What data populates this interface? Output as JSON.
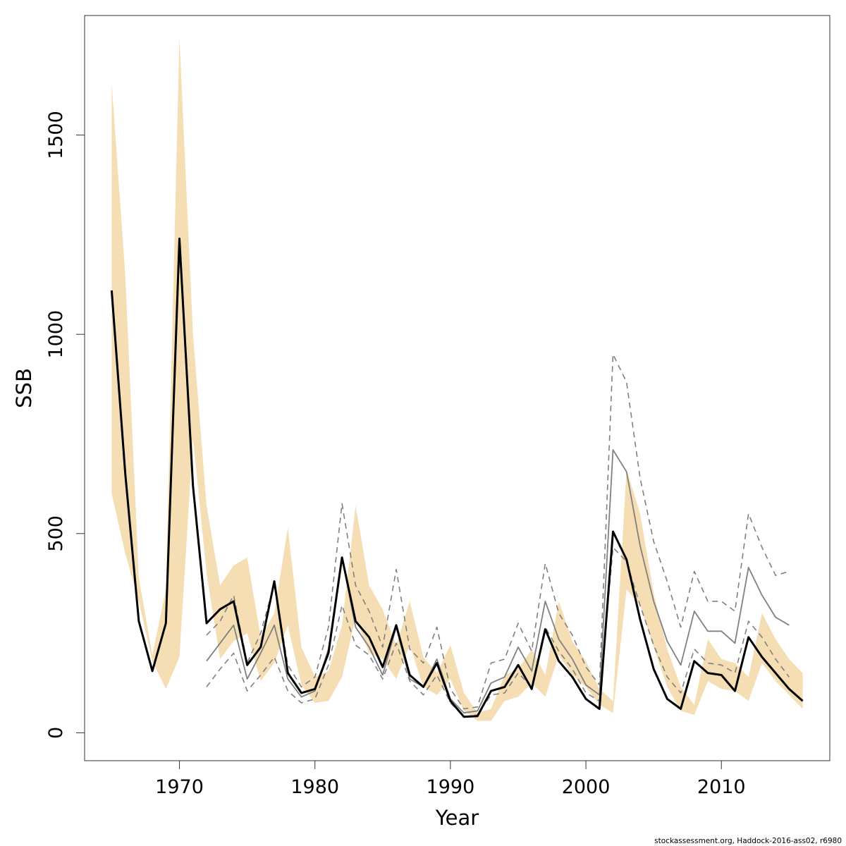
{
  "chart_data": {
    "type": "line",
    "xlabel": "Year",
    "ylabel": "SSB",
    "xlim": [
      1963,
      2018
    ],
    "ylim": [
      -70,
      1800
    ],
    "x_ticks": [
      1970,
      1980,
      1990,
      2000,
      2010
    ],
    "y_ticks": [
      0,
      500,
      1000,
      1500
    ],
    "grid": false,
    "legend": "none",
    "caption": "stockassessment.org, Haddock-2016-ass02, r6980",
    "colors": {
      "band": "#f5deb3",
      "estimate": "#000000",
      "retro": "#808080"
    },
    "band": {
      "x": [
        1965,
        1966,
        1967,
        1968,
        1969,
        1970,
        1971,
        1972,
        1973,
        1974,
        1975,
        1976,
        1977,
        1978,
        1979,
        1980,
        1981,
        1982,
        1983,
        1984,
        1985,
        1986,
        1987,
        1988,
        1989,
        1990,
        1991,
        1992,
        1993,
        1994,
        1995,
        1996,
        1997,
        1998,
        1999,
        2000,
        2001,
        2002,
        2003,
        2004,
        2005,
        2006,
        2007,
        2008,
        2009,
        2010,
        2011,
        2012,
        2013,
        2014,
        2015,
        2016
      ],
      "lower": [
        600,
        450,
        330,
        180,
        110,
        190,
        740,
        400,
        185,
        230,
        250,
        130,
        175,
        270,
        120,
        75,
        80,
        140,
        290,
        200,
        185,
        135,
        220,
        115,
        95,
        135,
        55,
        30,
        30,
        80,
        90,
        125,
        90,
        195,
        145,
        115,
        70,
        50,
        360,
        320,
        215,
        115,
        55,
        45,
        130,
        110,
        105,
        80,
        175,
        130,
        95,
        60
      ],
      "upper": [
        1630,
        1150,
        390,
        195,
        360,
        1745,
        1000,
        570,
        370,
        420,
        440,
        240,
        300,
        515,
        215,
        140,
        155,
        270,
        570,
        370,
        310,
        220,
        330,
        190,
        150,
        220,
        100,
        50,
        60,
        145,
        160,
        210,
        145,
        330,
        230,
        180,
        110,
        80,
        660,
        550,
        350,
        210,
        115,
        70,
        235,
        185,
        175,
        140,
        300,
        235,
        185,
        150
      ]
    },
    "series": [
      {
        "name": "estimate",
        "x": [
          1965,
          1966,
          1967,
          1968,
          1969,
          1970,
          1971,
          1972,
          1973,
          1974,
          1975,
          1976,
          1977,
          1978,
          1979,
          1980,
          1981,
          1982,
          1983,
          1984,
          1985,
          1986,
          1987,
          1988,
          1989,
          1990,
          1991,
          1992,
          1993,
          1994,
          1995,
          1996,
          1997,
          1998,
          1999,
          2000,
          2001,
          2002,
          2003,
          2004,
          2005,
          2006,
          2007,
          2008,
          2009,
          2010,
          2011,
          2012,
          2013,
          2014,
          2015,
          2016
        ],
        "values": [
          1110,
          650,
          280,
          155,
          275,
          1240,
          620,
          275,
          310,
          330,
          170,
          215,
          380,
          150,
          100,
          110,
          200,
          440,
          280,
          240,
          165,
          270,
          145,
          115,
          175,
          80,
          40,
          42,
          105,
          115,
          170,
          110,
          260,
          180,
          140,
          85,
          60,
          505,
          435,
          285,
          160,
          85,
          60,
          180,
          150,
          145,
          105,
          240,
          190,
          150,
          110,
          80
        ]
      },
      {
        "name": "retro-median",
        "x": [
          1972,
          1973,
          1974,
          1975,
          1976,
          1977,
          1978,
          1979,
          1980,
          1981,
          1982,
          1983,
          1984,
          1985,
          1986,
          1987,
          1988,
          1989,
          1990,
          1991,
          1992,
          1993,
          1994,
          1995,
          1996,
          1997,
          1998,
          1999,
          2000,
          2001,
          2002,
          2003,
          2004,
          2005,
          2006,
          2007,
          2008,
          2009,
          2010,
          2011,
          2012,
          2013,
          2014,
          2015
        ],
        "values": [
          180,
          225,
          270,
          135,
          200,
          270,
          135,
          90,
          105,
          210,
          440,
          265,
          215,
          145,
          265,
          135,
          115,
          185,
          85,
          50,
          55,
          125,
          140,
          215,
          155,
          330,
          235,
          185,
          120,
          95,
          710,
          655,
          470,
          330,
          230,
          170,
          305,
          255,
          255,
          225,
          415,
          345,
          290,
          270
        ]
      },
      {
        "name": "retro-lower",
        "x": [
          1972,
          1973,
          1974,
          1975,
          1976,
          1977,
          1978,
          1979,
          1980,
          1981,
          1982,
          1983,
          1984,
          1985,
          1986,
          1987,
          1988,
          1989,
          1990,
          1991,
          1992,
          1993,
          1994,
          1995,
          1996,
          1997,
          1998,
          1999,
          2000,
          2001,
          2002,
          2003,
          2004,
          2005,
          2006,
          2007,
          2008,
          2009,
          2010,
          2011,
          2012,
          2013,
          2014,
          2015
        ],
        "values": [
          115,
          160,
          200,
          105,
          145,
          190,
          105,
          75,
          85,
          170,
          320,
          220,
          195,
          135,
          225,
          130,
          95,
          145,
          75,
          40,
          45,
          95,
          100,
          150,
          115,
          265,
          205,
          160,
          100,
          80,
          465,
          430,
          320,
          220,
          140,
          100,
          210,
          175,
          170,
          150,
          280,
          240,
          185,
          140
        ]
      },
      {
        "name": "retro-upper",
        "x": [
          1972,
          1973,
          1974,
          1975,
          1976,
          1977,
          1978,
          1979,
          1980,
          1981,
          1982,
          1983,
          1984,
          1985,
          1986,
          1987,
          1988,
          1989,
          1990,
          1991,
          1992,
          1993,
          1994,
          1995,
          1996,
          1997,
          1998,
          1999,
          2000,
          2001,
          2002,
          2003,
          2004,
          2005,
          2006,
          2007,
          2008,
          2009,
          2010,
          2011,
          2012,
          2013,
          2014,
          2015
        ],
        "values": [
          245,
          280,
          345,
          175,
          250,
          375,
          170,
          115,
          140,
          265,
          575,
          370,
          305,
          215,
          410,
          210,
          175,
          265,
          110,
          60,
          65,
          175,
          185,
          275,
          205,
          425,
          300,
          245,
          165,
          120,
          950,
          880,
          640,
          480,
          380,
          265,
          405,
          330,
          330,
          305,
          550,
          465,
          395,
          405
        ]
      }
    ]
  }
}
